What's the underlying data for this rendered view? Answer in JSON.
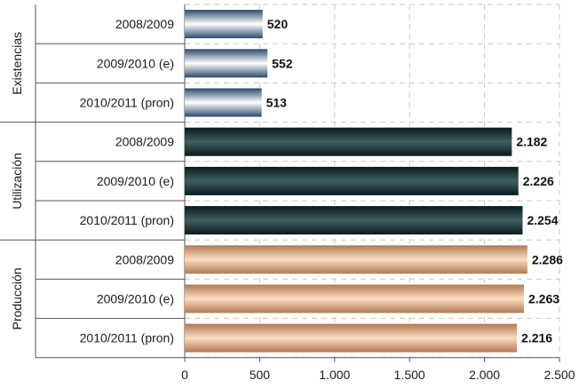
{
  "chart_data": {
    "type": "bar",
    "orientation": "horizontal",
    "groups": [
      {
        "label": "Existencias",
        "style": "steel",
        "rows": [
          {
            "category": "2008/2009",
            "value": 520,
            "value_label": "520"
          },
          {
            "category": "2009/2010 (e)",
            "value": 552,
            "value_label": "552"
          },
          {
            "category": "2010/2011 (pron)",
            "value": 513,
            "value_label": "513"
          }
        ]
      },
      {
        "label": "Utilización",
        "style": "dark",
        "rows": [
          {
            "category": "2008/2009",
            "value": 2182,
            "value_label": "2.182"
          },
          {
            "category": "2009/2010 (e)",
            "value": 2226,
            "value_label": "2.226"
          },
          {
            "category": "2010/2011 (pron)",
            "value": 2254,
            "value_label": "2.254"
          }
        ]
      },
      {
        "label": "Producción",
        "style": "tan",
        "rows": [
          {
            "category": "2008/2009",
            "value": 2286,
            "value_label": "2.286"
          },
          {
            "category": "2009/2010 (e)",
            "value": 2263,
            "value_label": "2.263"
          },
          {
            "category": "2010/2011 (pron)",
            "value": 2216,
            "value_label": "2.216"
          }
        ]
      }
    ],
    "xlim": [
      0,
      2500
    ],
    "xticks": [
      0,
      500,
      1000,
      1500,
      2000,
      2500
    ],
    "xtick_labels": [
      "0",
      "500",
      "1.000",
      "1.500",
      "2.000",
      "2.500"
    ],
    "grid": "dashed vertical",
    "legend": "none",
    "colors": {
      "steel_edge": "#2a4a6a",
      "steel_mid": "#ffffff",
      "dark_edge": "#0a1a1c",
      "dark_mid": "#3f5f62",
      "tan_edge": "#b07a55",
      "tan_mid": "#fbdcc0",
      "grid": "#c8c8c8",
      "axis": "#555555"
    }
  }
}
